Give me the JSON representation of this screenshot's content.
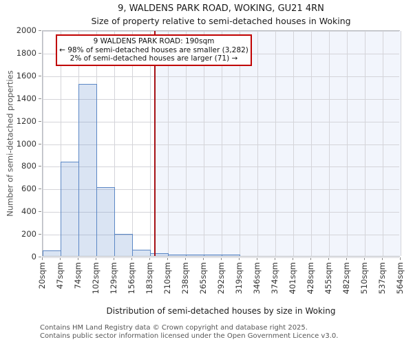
{
  "title": "9, WALDENS PARK ROAD, WOKING, GU21 4RN",
  "subtitle": "Size of property relative to semi-detached houses in Woking",
  "annotation": {
    "line1": "9 WALDENS PARK ROAD: 190sqm",
    "line2": "← 98% of semi-detached houses are smaller (3,282)",
    "line3": "2% of semi-detached houses are larger (71) →"
  },
  "footer": {
    "line1": "Contains HM Land Registry data © Crown copyright and database right 2025.",
    "line2": "Contains public sector information licensed under the Open Government Licence v3.0."
  },
  "chart_data": {
    "type": "bar",
    "title": "9, WALDENS PARK ROAD, WOKING, GU21 4RN — Size of property relative to semi-detached houses in Woking",
    "xlabel": "Distribution of semi-detached houses by size in Woking",
    "ylabel": "Number of semi-detached properties",
    "bin_edges_sqm": [
      20,
      47,
      74,
      102,
      129,
      156,
      183,
      210,
      238,
      265,
      292,
      319,
      346,
      374,
      401,
      428,
      455,
      482,
      510,
      537,
      564
    ],
    "x_tick_labels": [
      "20sqm",
      "47sqm",
      "74sqm",
      "102sqm",
      "129sqm",
      "156sqm",
      "183sqm",
      "210sqm",
      "238sqm",
      "265sqm",
      "292sqm",
      "319sqm",
      "346sqm",
      "374sqm",
      "401sqm",
      "428sqm",
      "455sqm",
      "482sqm",
      "510sqm",
      "537sqm",
      "564sqm"
    ],
    "values": [
      50,
      830,
      1520,
      610,
      195,
      55,
      25,
      12,
      12,
      4,
      4,
      0,
      0,
      0,
      0,
      0,
      0,
      0,
      0,
      0
    ],
    "ylim": [
      0,
      2000
    ],
    "ytick_step": 200,
    "y_tick_labels": [
      "0",
      "200",
      "400",
      "600",
      "800",
      "1000",
      "1200",
      "1400",
      "1600",
      "1800",
      "2000"
    ],
    "grid": true,
    "legend": "none",
    "marker": {
      "value_sqm": 190,
      "smaller_pct": 98,
      "smaller_count": "3,282",
      "larger_pct": 2,
      "larger_count": "71"
    },
    "colors": {
      "bar_fill": "rgba(112,150,210,0.26)",
      "bar_border": "#5b87c5",
      "marker_line": "#a50f15",
      "shade_right_of_marker": "#f2f5fc",
      "gridline": "#d4d4d9",
      "annotation_border": "#c00000"
    }
  }
}
